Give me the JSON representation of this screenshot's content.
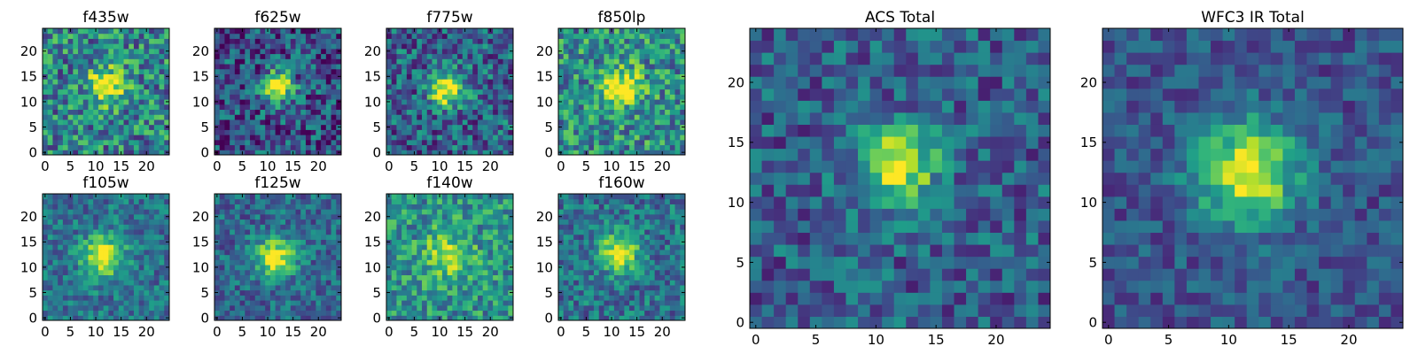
{
  "chart_data": [
    {
      "type": "heatmap",
      "title": "f435w",
      "colormap": "viridis",
      "image_size": [
        25,
        25
      ],
      "xlim": [
        0,
        24
      ],
      "ylim": [
        0,
        24
      ],
      "xticks": [
        0,
        5,
        10,
        15,
        20
      ],
      "yticks": [
        0,
        5,
        10,
        15,
        20
      ],
      "source": {
        "x": 12,
        "y": 13,
        "sigma": 2.6,
        "peak": 0.55,
        "noise": 0.32,
        "background": 0.45
      }
    },
    {
      "type": "heatmap",
      "title": "f625w",
      "colormap": "viridis",
      "image_size": [
        25,
        25
      ],
      "xlim": [
        0,
        24
      ],
      "ylim": [
        0,
        24
      ],
      "xticks": [
        0,
        5,
        10,
        15,
        20
      ],
      "yticks": [
        0,
        5,
        10,
        15,
        20
      ],
      "source": {
        "x": 12,
        "y": 13,
        "sigma": 2.2,
        "peak": 0.75,
        "noise": 0.3,
        "background": 0.25
      }
    },
    {
      "type": "heatmap",
      "title": "f775w",
      "colormap": "viridis",
      "image_size": [
        25,
        25
      ],
      "xlim": [
        0,
        24
      ],
      "ylim": [
        0,
        24
      ],
      "xticks": [
        0,
        5,
        10,
        15,
        20
      ],
      "yticks": [
        0,
        5,
        10,
        15,
        20
      ],
      "source": {
        "x": 11.5,
        "y": 12.5,
        "sigma": 2.4,
        "peak": 0.75,
        "noise": 0.28,
        "background": 0.32
      }
    },
    {
      "type": "heatmap",
      "title": "f850lp",
      "colormap": "viridis",
      "image_size": [
        25,
        25
      ],
      "xlim": [
        0,
        24
      ],
      "ylim": [
        0,
        24
      ],
      "xticks": [
        0,
        5,
        10,
        15,
        20
      ],
      "yticks": [
        0,
        5,
        10,
        15,
        20
      ],
      "source": {
        "x": 12,
        "y": 13,
        "sigma": 2.5,
        "peak": 0.55,
        "noise": 0.3,
        "background": 0.5
      }
    },
    {
      "type": "heatmap",
      "title": "f105w",
      "colormap": "viridis",
      "image_size": [
        25,
        25
      ],
      "xlim": [
        0,
        24
      ],
      "ylim": [
        0,
        24
      ],
      "xticks": [
        0,
        5,
        10,
        15,
        20
      ],
      "yticks": [
        0,
        5,
        10,
        15,
        20
      ],
      "source": {
        "x": 11.5,
        "y": 12,
        "sigma": 2.8,
        "peak": 0.65,
        "noise": 0.2,
        "background": 0.38
      }
    },
    {
      "type": "heatmap",
      "title": "f125w",
      "colormap": "viridis",
      "image_size": [
        25,
        25
      ],
      "xlim": [
        0,
        24
      ],
      "ylim": [
        0,
        24
      ],
      "xticks": [
        0,
        5,
        10,
        15,
        20
      ],
      "yticks": [
        0,
        5,
        10,
        15,
        20
      ],
      "source": {
        "x": 11.5,
        "y": 12,
        "sigma": 2.7,
        "peak": 0.65,
        "noise": 0.2,
        "background": 0.34
      }
    },
    {
      "type": "heatmap",
      "title": "f140w",
      "colormap": "viridis",
      "image_size": [
        25,
        25
      ],
      "xlim": [
        0,
        24
      ],
      "ylim": [
        0,
        24
      ],
      "xticks": [
        0,
        5,
        10,
        15,
        20
      ],
      "yticks": [
        0,
        5,
        10,
        15,
        20
      ],
      "source": {
        "x": 11.5,
        "y": 12.5,
        "sigma": 3.2,
        "peak": 0.4,
        "noise": 0.25,
        "background": 0.5
      }
    },
    {
      "type": "heatmap",
      "title": "f160w",
      "colormap": "viridis",
      "image_size": [
        25,
        25
      ],
      "xlim": [
        0,
        24
      ],
      "ylim": [
        0,
        24
      ],
      "xticks": [
        0,
        5,
        10,
        15,
        20
      ],
      "yticks": [
        0,
        5,
        10,
        15,
        20
      ],
      "source": {
        "x": 11.5,
        "y": 13,
        "sigma": 2.7,
        "peak": 0.6,
        "noise": 0.22,
        "background": 0.38
      }
    },
    {
      "type": "heatmap",
      "title": "ACS Total",
      "colormap": "viridis",
      "image_size": [
        25,
        25
      ],
      "xlim": [
        0,
        24
      ],
      "ylim": [
        0,
        24
      ],
      "xticks": [
        0,
        5,
        10,
        15,
        20
      ],
      "yticks": [
        0,
        5,
        10,
        15,
        20
      ],
      "source": {
        "x": 11.8,
        "y": 13.2,
        "sigma": 2.3,
        "peak": 0.68,
        "noise": 0.22,
        "background": 0.3
      }
    },
    {
      "type": "heatmap",
      "title": "WFC3 IR Total",
      "colormap": "viridis",
      "image_size": [
        25,
        25
      ],
      "xlim": [
        0,
        24
      ],
      "ylim": [
        0,
        24
      ],
      "xticks": [
        0,
        5,
        10,
        15,
        20
      ],
      "yticks": [
        0,
        5,
        10,
        15,
        20
      ],
      "source": {
        "x": 11.5,
        "y": 12.5,
        "sigma": 3.0,
        "peak": 0.7,
        "noise": 0.16,
        "background": 0.26
      }
    }
  ]
}
